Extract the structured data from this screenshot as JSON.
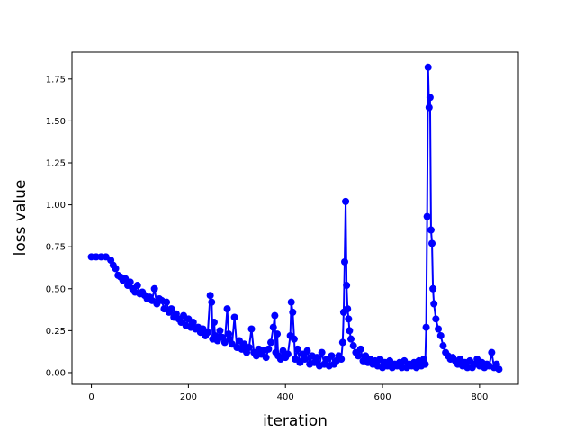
{
  "chart_data": {
    "type": "line",
    "title": "",
    "xlabel": "iteration",
    "ylabel": "loss value",
    "xlim": [
      -40,
      880
    ],
    "ylim": [
      -0.07,
      1.91
    ],
    "x_ticks": [
      0,
      200,
      400,
      600,
      800
    ],
    "x_tick_labels": [
      "0",
      "200",
      "400",
      "600",
      "800"
    ],
    "y_ticks": [
      0.0,
      0.25,
      0.5,
      0.75,
      1.0,
      1.25,
      1.5,
      1.75
    ],
    "y_tick_labels": [
      "0.00",
      "0.25",
      "0.50",
      "0.75",
      "1.00",
      "1.25",
      "1.50",
      "1.75"
    ],
    "grid": false,
    "legend": "none",
    "series": [
      {
        "color": "#0000ff",
        "marker": "circle",
        "x": [
          0,
          10,
          20,
          30,
          40,
          45,
          50,
          55,
          60,
          65,
          70,
          75,
          80,
          85,
          90,
          95,
          100,
          105,
          110,
          115,
          120,
          125,
          130,
          135,
          140,
          145,
          150,
          155,
          160,
          165,
          170,
          175,
          180,
          185,
          190,
          195,
          200,
          205,
          210,
          215,
          220,
          225,
          230,
          235,
          240,
          245,
          248,
          250,
          253,
          255,
          260,
          265,
          270,
          275,
          280,
          283,
          285,
          290,
          295,
          300,
          305,
          310,
          315,
          320,
          325,
          330,
          335,
          340,
          345,
          350,
          355,
          360,
          365,
          370,
          375,
          378,
          380,
          383,
          385,
          390,
          395,
          400,
          405,
          410,
          412,
          415,
          418,
          420,
          425,
          430,
          435,
          440,
          445,
          450,
          455,
          460,
          465,
          470,
          475,
          480,
          485,
          490,
          495,
          500,
          505,
          510,
          515,
          518,
          520,
          522,
          524,
          526,
          528,
          530,
          532,
          535,
          540,
          545,
          550,
          555,
          560,
          565,
          570,
          575,
          580,
          585,
          590,
          595,
          600,
          605,
          610,
          615,
          620,
          625,
          630,
          635,
          640,
          645,
          650,
          655,
          660,
          665,
          670,
          675,
          680,
          685,
          688,
          690,
          692,
          694,
          696,
          698,
          700,
          702,
          704,
          706,
          710,
          715,
          720,
          725,
          730,
          735,
          740,
          745,
          750,
          755,
          760,
          765,
          770,
          775,
          780,
          785,
          790,
          795,
          800,
          805,
          810,
          815,
          820,
          825,
          830,
          835,
          840
        ],
        "y": [
          0.69,
          0.69,
          0.69,
          0.69,
          0.67,
          0.64,
          0.62,
          0.58,
          0.57,
          0.55,
          0.56,
          0.52,
          0.54,
          0.5,
          0.48,
          0.52,
          0.47,
          0.48,
          0.46,
          0.44,
          0.45,
          0.43,
          0.5,
          0.41,
          0.44,
          0.43,
          0.38,
          0.42,
          0.36,
          0.38,
          0.33,
          0.35,
          0.32,
          0.3,
          0.34,
          0.28,
          0.32,
          0.27,
          0.3,
          0.26,
          0.27,
          0.24,
          0.26,
          0.22,
          0.24,
          0.46,
          0.42,
          0.2,
          0.3,
          0.22,
          0.19,
          0.25,
          0.21,
          0.18,
          0.38,
          0.23,
          0.2,
          0.17,
          0.33,
          0.15,
          0.19,
          0.14,
          0.17,
          0.12,
          0.15,
          0.26,
          0.12,
          0.1,
          0.14,
          0.11,
          0.13,
          0.09,
          0.14,
          0.18,
          0.27,
          0.34,
          0.12,
          0.23,
          0.1,
          0.08,
          0.13,
          0.09,
          0.11,
          0.22,
          0.42,
          0.36,
          0.2,
          0.08,
          0.14,
          0.06,
          0.11,
          0.08,
          0.13,
          0.05,
          0.1,
          0.06,
          0.09,
          0.04,
          0.12,
          0.05,
          0.08,
          0.04,
          0.1,
          0.05,
          0.07,
          0.1,
          0.08,
          0.18,
          0.36,
          0.66,
          1.02,
          0.52,
          0.38,
          0.32,
          0.25,
          0.2,
          0.16,
          0.12,
          0.1,
          0.14,
          0.07,
          0.1,
          0.06,
          0.08,
          0.05,
          0.07,
          0.04,
          0.08,
          0.03,
          0.06,
          0.04,
          0.07,
          0.03,
          0.05,
          0.04,
          0.06,
          0.03,
          0.07,
          0.03,
          0.05,
          0.04,
          0.06,
          0.03,
          0.07,
          0.04,
          0.08,
          0.05,
          0.27,
          0.93,
          1.82,
          1.58,
          1.64,
          0.85,
          0.77,
          0.5,
          0.41,
          0.32,
          0.26,
          0.22,
          0.16,
          0.12,
          0.1,
          0.08,
          0.09,
          0.07,
          0.05,
          0.08,
          0.04,
          0.06,
          0.03,
          0.07,
          0.03,
          0.05,
          0.08,
          0.04,
          0.06,
          0.03,
          0.05,
          0.04,
          0.12,
          0.03,
          0.05,
          0.02
        ]
      }
    ]
  }
}
